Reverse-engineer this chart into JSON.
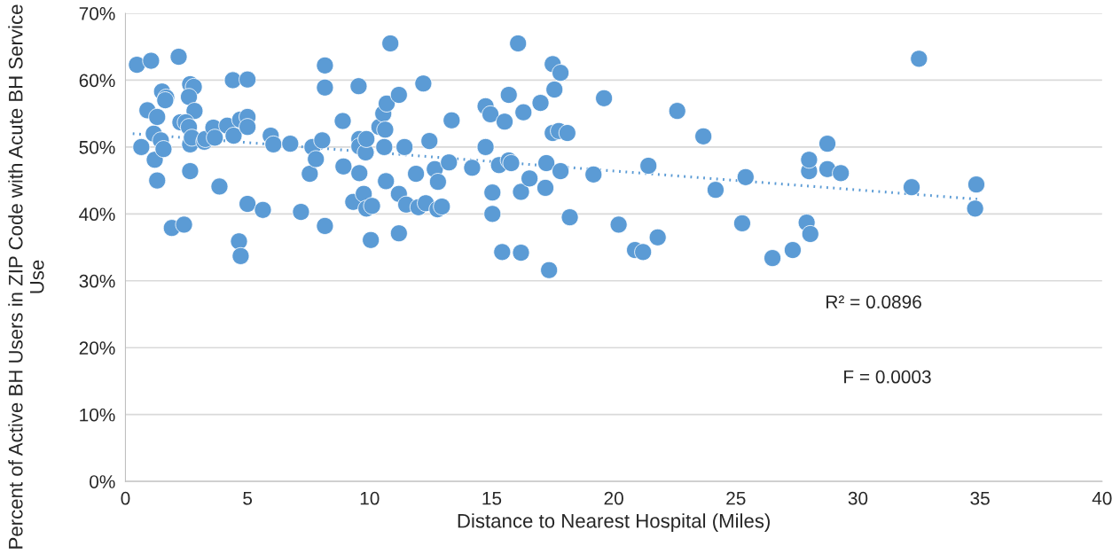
{
  "chart_data": {
    "type": "scatter",
    "xlabel": "Distance to Nearest Hospital (Miles)",
    "ylabel": "Percent of Active BH Users in ZIP Code with Acute BH Service Use",
    "xlim": [
      0,
      40
    ],
    "xticks": [
      0,
      5,
      10,
      15,
      20,
      25,
      30,
      35,
      40
    ],
    "ylim": [
      0,
      70
    ],
    "yticks": [
      {
        "value": 0,
        "label": "0%"
      },
      {
        "value": 10,
        "label": "10%"
      },
      {
        "value": 20,
        "label": "20%"
      },
      {
        "value": 30,
        "label": "30%"
      },
      {
        "value": 40,
        "label": "40%"
      },
      {
        "value": 50,
        "label": "50%"
      },
      {
        "value": 60,
        "label": "60%"
      },
      {
        "value": 70,
        "label": "70%"
      }
    ],
    "grid": "y",
    "series": [
      {
        "marker": "circle",
        "color": "#5b9bd5",
        "x": [
          0.47,
          1.05,
          2.18,
          0.9,
          0.65,
          1.16,
          1.2,
          1.3,
          1.3,
          1.5,
          1.67,
          1.63,
          1.45,
          1.56,
          1.9,
          2.4,
          2.65,
          2.8,
          2.6,
          2.83,
          2.25,
          2.47,
          2.6,
          2.65,
          2.65,
          2.72,
          3.23,
          3.27,
          3.6,
          3.66,
          3.85,
          4.17,
          4.4,
          4.43,
          4.7,
          4.65,
          4.72,
          5.0,
          5.0,
          5.0,
          5.0,
          5.63,
          5.95,
          6.06,
          6.75,
          7.19,
          7.55,
          7.66,
          7.8,
          8.06,
          8.17,
          8.17,
          8.17,
          8.9,
          8.93,
          9.33,
          9.55,
          9.58,
          9.58,
          9.58,
          9.76,
          9.84,
          9.87,
          9.87,
          10.1,
          10.05,
          10.4,
          10.56,
          10.6,
          10.64,
          10.7,
          10.67,
          10.85,
          11.2,
          11.2,
          11.2,
          11.43,
          11.5,
          11.9,
          12.0,
          12.2,
          12.3,
          12.45,
          12.67,
          12.78,
          12.8,
          12.96,
          13.25,
          13.36,
          14.2,
          14.75,
          14.75,
          14.95,
          15.03,
          15.03,
          15.3,
          15.43,
          15.53,
          15.7,
          15.7,
          15.8,
          16.08,
          16.2,
          16.2,
          16.3,
          16.55,
          17.0,
          17.24,
          17.2,
          17.35,
          17.5,
          17.57,
          17.5,
          17.75,
          17.82,
          17.82,
          18.1,
          18.2,
          19.17,
          19.6,
          20.2,
          20.87,
          21.2,
          21.42,
          21.8,
          22.6,
          23.67,
          24.17,
          25.26,
          25.4,
          26.5,
          27.33,
          27.9,
          28.0,
          28.0,
          28.05,
          28.75,
          28.75,
          29.3,
          32.2,
          32.5,
          34.85,
          34.8
        ],
        "values": [
          62.3,
          62.9,
          63.5,
          55.5,
          50.0,
          52.0,
          48.1,
          45.0,
          54.5,
          58.3,
          57.4,
          57.0,
          51.0,
          49.7,
          37.9,
          38.4,
          59.4,
          59.0,
          57.5,
          55.4,
          53.7,
          53.7,
          53.0,
          50.4,
          46.4,
          51.4,
          50.8,
          51.2,
          52.9,
          51.4,
          44.1,
          53.2,
          60.0,
          51.7,
          54.1,
          35.9,
          33.7,
          60.1,
          54.5,
          53.0,
          41.5,
          40.6,
          51.7,
          50.4,
          50.5,
          40.3,
          46.0,
          50.0,
          48.2,
          51.0,
          62.2,
          58.9,
          38.2,
          53.9,
          47.1,
          41.8,
          59.1,
          51.2,
          50.1,
          46.1,
          43.0,
          49.2,
          51.2,
          40.8,
          41.2,
          36.1,
          53.0,
          55.0,
          50.0,
          52.6,
          56.5,
          44.9,
          65.5,
          57.8,
          43.0,
          37.1,
          50.0,
          41.4,
          46.0,
          41.0,
          59.5,
          41.6,
          50.9,
          46.7,
          40.7,
          44.8,
          41.1,
          47.7,
          54.0,
          46.9,
          56.1,
          50.0,
          54.9,
          43.2,
          40.0,
          47.3,
          34.3,
          53.8,
          57.8,
          48.0,
          47.6,
          65.5,
          43.3,
          34.2,
          55.2,
          45.3,
          56.6,
          47.6,
          43.9,
          31.6,
          62.4,
          58.6,
          52.1,
          52.4,
          61.1,
          46.4,
          52.1,
          39.5,
          45.9,
          57.3,
          38.4,
          34.6,
          34.3,
          47.2,
          36.5,
          55.4,
          51.6,
          43.6,
          38.6,
          45.5,
          33.4,
          34.6,
          38.7,
          46.4,
          48.1,
          37.0,
          50.5,
          46.7,
          46.1,
          44.0,
          63.2,
          44.4,
          40.8
        ]
      },
      {
        "type": "line",
        "color": "#5b9bd5",
        "line_style": "dotted",
        "x": [
          0.3,
          34.9
        ],
        "values": [
          52.0,
          42.2
        ]
      }
    ],
    "annotations": [
      "R² = 0.0896",
      "F = 0.0003"
    ]
  }
}
